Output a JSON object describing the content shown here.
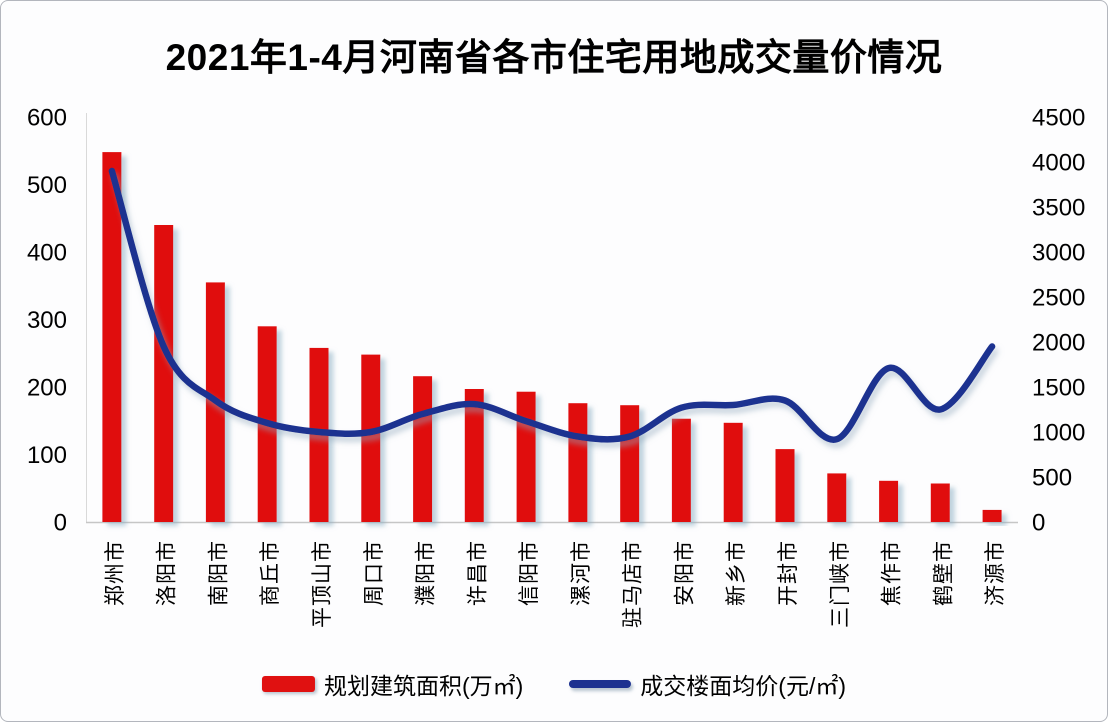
{
  "title": "2021年1-4月河南省各市住宅用地成交量价情况",
  "chart_data": {
    "type": "combo (bar + line)",
    "title": "2021年1-4月河南省各市住宅用地成交量价情况",
    "categories": [
      "郑州市",
      "洛阳市",
      "南阳市",
      "商丘市",
      "平顶山市",
      "周口市",
      "濮阳市",
      "许昌市",
      "信阳市",
      "漯河市",
      "驻马店市",
      "安阳市",
      "新乡市",
      "开封市",
      "三门峡市",
      "焦作市",
      "鹤壁市",
      "济源市"
    ],
    "series": [
      {
        "name": "规划建筑面积(万㎡)",
        "type": "bar",
        "y_axis": "left",
        "color": "#e01111",
        "values": [
          548,
          440,
          355,
          290,
          258,
          248,
          216,
          197,
          193,
          176,
          173,
          153,
          147,
          108,
          72,
          61,
          57,
          18
        ]
      },
      {
        "name": "成交楼面均价(元/㎡)",
        "type": "line",
        "y_axis": "right",
        "color": "#1c3190",
        "values": [
          3900,
          1950,
          1350,
          1100,
          1000,
          1000,
          1200,
          1310,
          1120,
          950,
          950,
          1270,
          1300,
          1350,
          920,
          1710,
          1250,
          1950
        ]
      }
    ],
    "left_axis": {
      "min": 0,
      "max": 600,
      "step": 100,
      "ticks": [
        0,
        100,
        200,
        300,
        400,
        500,
        600
      ]
    },
    "right_axis": {
      "min": 0,
      "max": 4500,
      "step": 500,
      "ticks": [
        0,
        500,
        1000,
        1500,
        2000,
        2500,
        3000,
        3500,
        4000,
        4500
      ]
    },
    "legend_position": "bottom",
    "grid": false
  }
}
